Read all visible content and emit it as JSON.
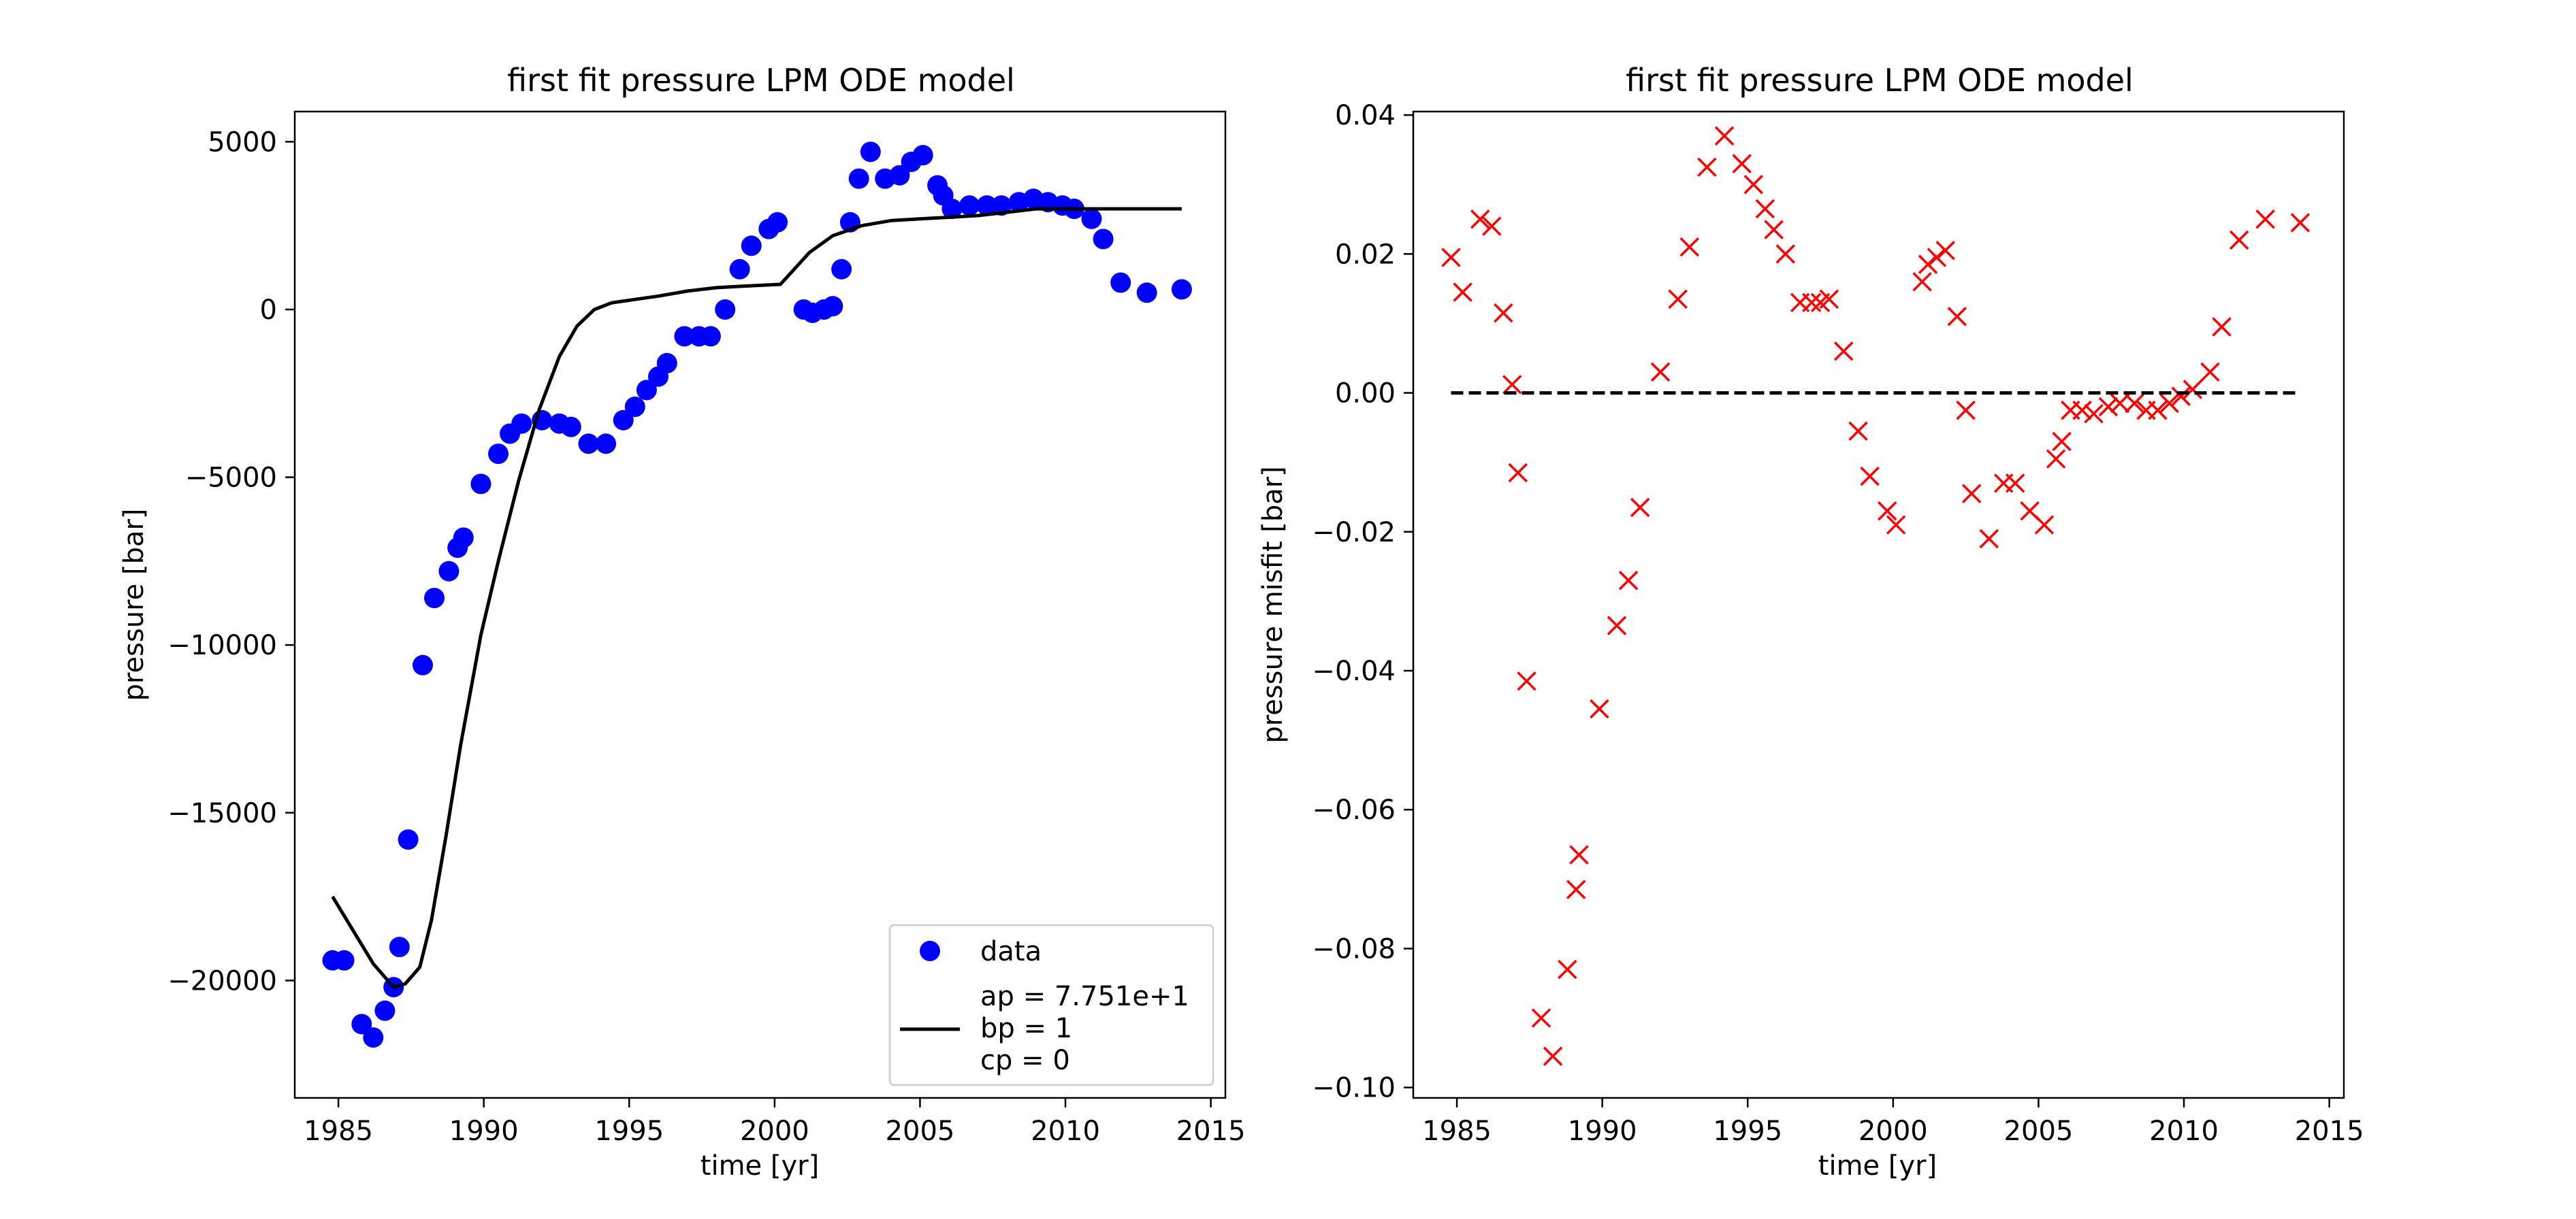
{
  "chart_data": [
    {
      "type": "scatter",
      "title": "first fit pressure LPM ODE model",
      "xlabel": "time [yr]",
      "ylabel": "pressure [bar]",
      "xlim": [
        1983.5,
        2015.5
      ],
      "ylim": [
        -23500,
        5900
      ],
      "xticks": [
        1985,
        1990,
        1995,
        2000,
        2005,
        2010,
        2015
      ],
      "yticks": [
        5000,
        0,
        -5000,
        -10000,
        -15000,
        -20000
      ],
      "ytick_labels": [
        "5000",
        "0",
        "−5000",
        "−10000",
        "−15000",
        "−20000"
      ],
      "legend_position": "lower-right",
      "series": [
        {
          "name": "data",
          "kind": "markers",
          "color": "#0000ff",
          "x": [
            1984.8,
            1985.2,
            1985.8,
            1986.2,
            1986.6,
            1986.9,
            1987.1,
            1987.4,
            1987.9,
            1988.3,
            1988.8,
            1989.1,
            1989.3,
            1989.9,
            1990.5,
            1990.9,
            1991.3,
            1992.0,
            1992.6,
            1993.0,
            1993.6,
            1994.2,
            1994.8,
            1995.2,
            1995.6,
            1996.0,
            1996.3,
            1996.9,
            1997.4,
            1997.8,
            1998.3,
            1998.8,
            1999.2,
            1999.8,
            2000.1,
            2001.0,
            2001.3,
            2001.7,
            2002.0,
            2002.3,
            2002.6,
            2002.9,
            2003.3,
            2003.8,
            2004.3,
            2004.7,
            2005.1,
            2005.6,
            2005.8,
            2006.1,
            2006.7,
            2007.3,
            2007.8,
            2008.4,
            2008.9,
            2009.4,
            2009.9,
            2010.3,
            2010.9,
            2011.3,
            2011.9,
            2012.8,
            2014.0
          ],
          "y": [
            -19400,
            -19400,
            -21300,
            -21700,
            -20900,
            -20200,
            -19000,
            -15800,
            -10600,
            -8600,
            -7800,
            -7100,
            -6800,
            -5200,
            -4300,
            -3700,
            -3400,
            -3300,
            -3400,
            -3500,
            -4000,
            -4000,
            -3300,
            -2900,
            -2400,
            -2000,
            -1600,
            -800,
            -800,
            -800,
            0,
            1200,
            1900,
            2400,
            2600,
            0,
            -100,
            0,
            100,
            1200,
            2600,
            3900,
            4700,
            3900,
            4000,
            4400,
            4600,
            3700,
            3400,
            3000,
            3100,
            3100,
            3100,
            3200,
            3300,
            3200,
            3100,
            3000,
            2700,
            2100,
            800,
            500,
            600
          ]
        },
        {
          "name": "ap = 7.751e+1\nbp = 1\ncp = 0",
          "label_lines": [
            "ap = 7.751e+1",
            "bp = 1",
            "cp = 0"
          ],
          "kind": "line",
          "color": "#000000",
          "x": [
            1984.8,
            1985.5,
            1986.2,
            1986.9,
            1987.3,
            1987.8,
            1988.2,
            1988.7,
            1989.2,
            1989.9,
            1990.5,
            1991.2,
            1991.9,
            1992.6,
            1993.2,
            1993.8,
            1994.4,
            1995.2,
            1996.0,
            1997.0,
            1998.0,
            1999.0,
            2000.2,
            2001.2,
            2002.0,
            2003.0,
            2004.0,
            2005.0,
            2006.0,
            2007.0,
            2008.0,
            2009.0,
            2010.0,
            2011.0,
            2012.0,
            2013.0,
            2014.0
          ],
          "y": [
            -17500,
            -18500,
            -19500,
            -20200,
            -20100,
            -19600,
            -18200,
            -15700,
            -13000,
            -9700,
            -7500,
            -5100,
            -3000,
            -1400,
            -500,
            0,
            200,
            300,
            400,
            550,
            650,
            700,
            750,
            1700,
            2200,
            2500,
            2650,
            2700,
            2750,
            2800,
            2900,
            3000,
            3000,
            3000,
            3000,
            3000,
            3000
          ]
        }
      ]
    },
    {
      "type": "scatter",
      "title": "first fit pressure LPM ODE model",
      "xlabel": "time [yr]",
      "ylabel": "pressure misfit [bar]",
      "xlim": [
        1983.5,
        2015.5
      ],
      "ylim": [
        -0.1015,
        0.0405
      ],
      "xticks": [
        1985,
        1990,
        1995,
        2000,
        2005,
        2010,
        2015
      ],
      "yticks": [
        0.04,
        0.02,
        0.0,
        -0.02,
        -0.04,
        -0.06,
        -0.08,
        -0.1
      ],
      "ytick_labels": [
        "0.04",
        "0.02",
        "0.00",
        "−0.02",
        "−0.04",
        "−0.06",
        "−0.08",
        "−0.10"
      ],
      "series": [
        {
          "kind": "x-markers",
          "color": "#ff0000",
          "x": [
            1984.8,
            1985.2,
            1985.8,
            1986.2,
            1986.6,
            1986.9,
            1987.1,
            1987.4,
            1987.9,
            1988.3,
            1988.8,
            1989.1,
            1989.2,
            1989.9,
            1990.5,
            1990.9,
            1991.3,
            1992.0,
            1992.6,
            1993.0,
            1993.6,
            1994.2,
            1994.8,
            1995.2,
            1995.6,
            1995.9,
            1996.3,
            1996.8,
            1997.2,
            1997.5,
            1997.8,
            1998.3,
            1998.8,
            1999.2,
            1999.8,
            2000.1,
            2001.0,
            2001.2,
            2001.5,
            2001.8,
            2002.2,
            2002.5,
            2002.7,
            2003.3,
            2003.8,
            2004.2,
            2004.7,
            2005.2,
            2005.6,
            2005.8,
            2006.1,
            2006.5,
            2006.9,
            2007.4,
            2007.8,
            2008.3,
            2008.7,
            2009.1,
            2009.5,
            2009.9,
            2010.3,
            2010.9,
            2011.3,
            2011.9,
            2012.8,
            2014.0
          ],
          "y": [
            0.0195,
            0.0145,
            0.025,
            0.024,
            0.0115,
            0.0012,
            -0.0115,
            -0.0415,
            -0.09,
            -0.0955,
            -0.083,
            -0.0715,
            -0.0665,
            -0.0455,
            -0.0335,
            -0.027,
            -0.0165,
            0.003,
            0.0135,
            0.021,
            0.0325,
            0.037,
            0.033,
            0.03,
            0.0265,
            0.0235,
            0.02,
            0.013,
            0.013,
            0.013,
            0.0135,
            0.006,
            -0.0055,
            -0.012,
            -0.017,
            -0.019,
            0.016,
            0.0185,
            0.0195,
            0.0205,
            0.011,
            -0.0025,
            -0.0145,
            -0.021,
            -0.013,
            -0.013,
            -0.017,
            -0.019,
            -0.0095,
            -0.007,
            -0.0025,
            -0.0025,
            -0.003,
            -0.002,
            -0.0015,
            -0.0015,
            -0.0025,
            -0.0025,
            -0.0015,
            -0.0005,
            0.0005,
            0.003,
            0.0095,
            0.022,
            0.025,
            0.0245
          ]
        },
        {
          "kind": "dashed-line",
          "color": "#000000",
          "x": [
            1984.8,
            2014.0
          ],
          "y": [
            0.0,
            0.0
          ]
        }
      ]
    }
  ]
}
